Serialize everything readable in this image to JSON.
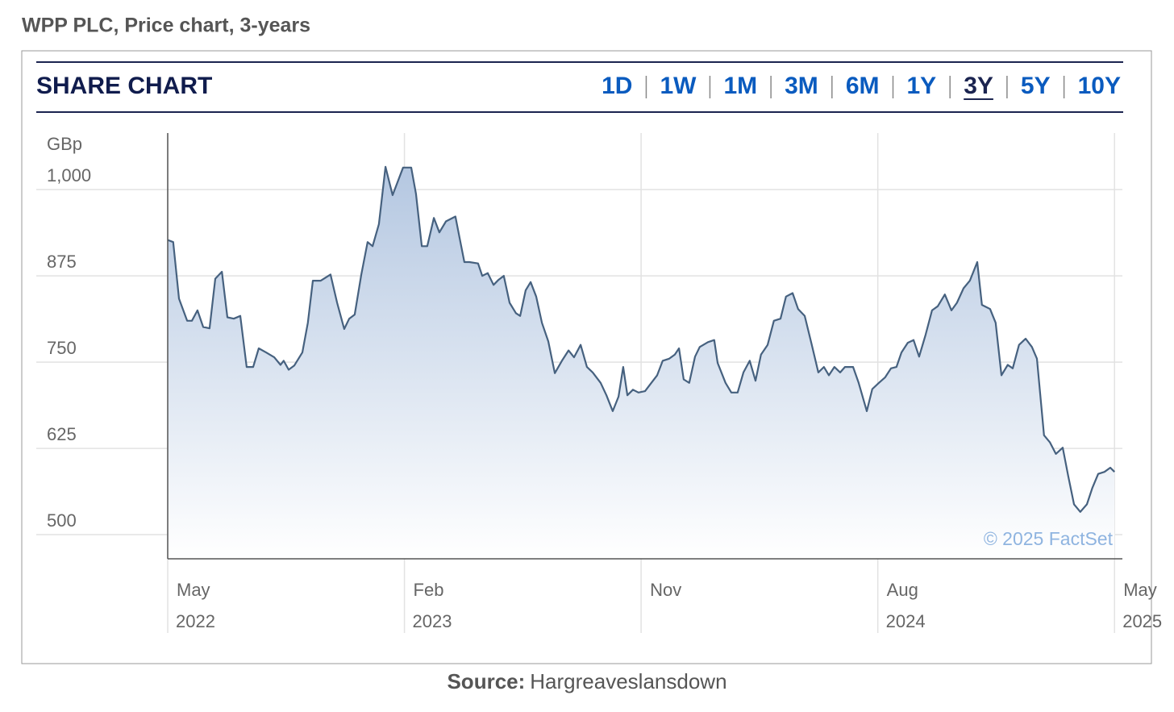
{
  "title": "WPP PLC, Price chart, 3-years",
  "widget": {
    "title": "SHARE CHART",
    "ranges": [
      "1D",
      "1W",
      "1M",
      "3M",
      "6M",
      "1Y",
      "3Y",
      "5Y",
      "10Y"
    ],
    "active_range": 6
  },
  "chart_data": {
    "type": "area",
    "y_label": "GBp",
    "watermark": "© 2025 FactSet",
    "line_color": "#46617f",
    "fill_color": "#b4c7e1",
    "grid": true,
    "ylim": [
      465,
      1082
    ],
    "yticks": [
      {
        "value": 1000,
        "label": "1,000"
      },
      875,
      750,
      625,
      500
    ],
    "xlim": [
      0,
      36.3
    ],
    "xticks": [
      {
        "value": 0,
        "label": "May"
      },
      {
        "value": 9,
        "label": "Feb"
      },
      {
        "value": 18,
        "label": "Nov"
      },
      {
        "value": 27,
        "label": "Aug"
      },
      {
        "value": 36,
        "label": "May"
      }
    ],
    "xtick_years": [
      "2022",
      "2023",
      null,
      "2024",
      "2025"
    ],
    "x": [
      0,
      0.21,
      0.43,
      0.74,
      0.92,
      1.13,
      1.35,
      1.59,
      1.81,
      2.06,
      2.27,
      2.51,
      2.76,
      3.0,
      3.25,
      3.46,
      3.74,
      4.05,
      4.29,
      4.41,
      4.6,
      4.81,
      5.12,
      5.33,
      5.52,
      5.82,
      6.19,
      6.44,
      6.71,
      6.9,
      7.11,
      7.36,
      7.6,
      7.79,
      8.03,
      8.28,
      8.55,
      8.95,
      9.26,
      9.44,
      9.66,
      9.87,
      10.12,
      10.33,
      10.58,
      10.94,
      11.1,
      11.28,
      11.47,
      11.8,
      11.96,
      12.17,
      12.39,
      12.57,
      12.78,
      13.0,
      13.24,
      13.4,
      13.61,
      13.8,
      14.01,
      14.23,
      14.47,
      14.72,
      14.99,
      15.24,
      15.45,
      15.7,
      15.94,
      16.16,
      16.46,
      16.68,
      16.92,
      17.14,
      17.32,
      17.48,
      17.69,
      17.9,
      18.15,
      18.39,
      18.61,
      18.82,
      19.07,
      19.28,
      19.44,
      19.62,
      19.83,
      20.05,
      20.23,
      20.54,
      20.78,
      20.91,
      21.21,
      21.43,
      21.67,
      21.89,
      22.13,
      22.35,
      22.56,
      22.81,
      23.05,
      23.3,
      23.51,
      23.76,
      23.97,
      24.22,
      24.49,
      24.74,
      24.95,
      25.14,
      25.35,
      25.57,
      25.75,
      26.06,
      26.27,
      26.58,
      26.79,
      27.04,
      27.28,
      27.5,
      27.71,
      27.9,
      28.14,
      28.36,
      28.57,
      28.82,
      29.06,
      29.28,
      29.55,
      29.8,
      30.01,
      30.26,
      30.5,
      30.78,
      30.96,
      31.27,
      31.48,
      31.7,
      31.94,
      32.13,
      32.37,
      32.62,
      32.86,
      33.05,
      33.32,
      33.54,
      33.77,
      34.03,
      34.24,
      34.46,
      34.7,
      34.95,
      35.16,
      35.38,
      35.62,
      35.84,
      36
    ],
    "values": [
      927,
      924,
      842,
      810,
      810,
      825,
      801,
      799,
      871,
      881,
      815,
      813,
      817,
      743,
      743,
      770,
      764,
      757,
      746,
      752,
      739,
      745,
      764,
      807,
      868,
      868,
      877,
      836,
      798,
      813,
      819,
      877,
      924,
      918,
      950,
      1033,
      992,
      1032,
      1032,
      994,
      918,
      918,
      959,
      938,
      954,
      961,
      930,
      895,
      895,
      893,
      875,
      879,
      862,
      869,
      875,
      836,
      821,
      817,
      854,
      866,
      845,
      807,
      780,
      734,
      752,
      767,
      757,
      775,
      743,
      735,
      720,
      702,
      679,
      700,
      743,
      702,
      710,
      706,
      708,
      720,
      731,
      752,
      755,
      761,
      770,
      725,
      720,
      758,
      772,
      779,
      782,
      749,
      720,
      706,
      706,
      735,
      752,
      723,
      761,
      775,
      810,
      813,
      845,
      850,
      827,
      817,
      775,
      735,
      743,
      731,
      743,
      735,
      743,
      743,
      720,
      679,
      711,
      720,
      728,
      741,
      743,
      764,
      778,
      782,
      758,
      790,
      825,
      831,
      848,
      825,
      836,
      857,
      868,
      895,
      833,
      827,
      807,
      731,
      746,
      741,
      775,
      784,
      772,
      755,
      644,
      634,
      617,
      626,
      585,
      544,
      533,
      544,
      568,
      588,
      591,
      597,
      591
    ]
  },
  "source": {
    "label": "Source:",
    "text": "Hargreaveslansdown"
  }
}
